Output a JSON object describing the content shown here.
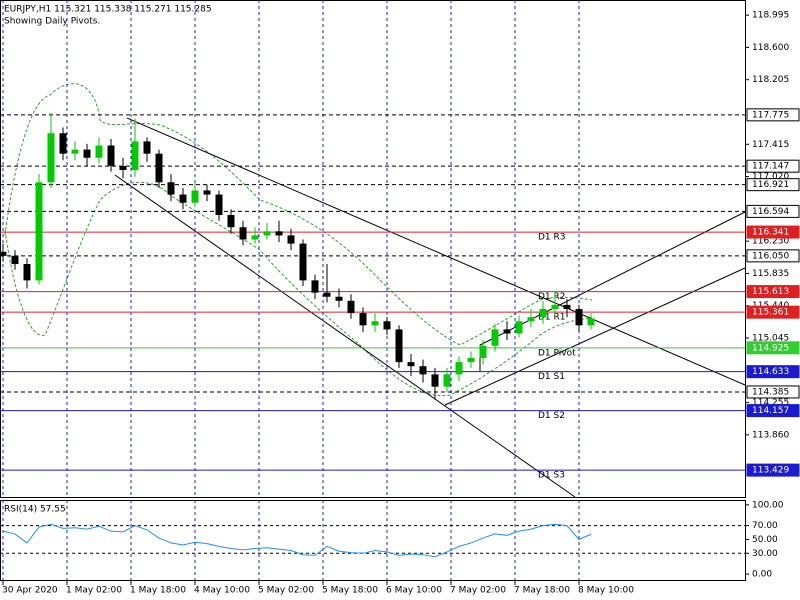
{
  "chart_data": {
    "type": "candlestick",
    "title": "EURJPY,H1  115.321 115.338 115.271 115.285",
    "subtitle": "Showing Daily Pivots.",
    "x": [
      0,
      3,
      6,
      9,
      12,
      15,
      18,
      21,
      24,
      27,
      30,
      33,
      36,
      39,
      42,
      45,
      48,
      51,
      54,
      57,
      60,
      63,
      66,
      69,
      72,
      75,
      78,
      81,
      84,
      87,
      90,
      93,
      96,
      99,
      102,
      105,
      108,
      111,
      114,
      117,
      120,
      123,
      126,
      129,
      132,
      135,
      138,
      141,
      144,
      147
    ],
    "open": [
      116.1,
      116.05,
      115.95,
      115.75,
      116.95,
      117.55,
      117.3,
      117.35,
      117.25,
      117.4,
      117.15,
      117.1,
      117.45,
      117.3,
      116.95,
      116.8,
      116.7,
      116.85,
      116.8,
      116.55,
      116.4,
      116.25,
      116.3,
      116.35,
      116.3,
      116.2,
      115.75,
      115.6,
      115.55,
      115.5,
      115.35,
      115.2,
      115.25,
      115.15,
      114.75,
      114.7,
      114.6,
      114.45,
      114.6,
      114.75,
      114.8,
      114.95,
      115.15,
      115.1,
      115.25,
      115.3,
      115.4,
      115.45,
      115.4,
      115.2
    ],
    "high": [
      116.2,
      116.12,
      116.02,
      117.05,
      117.8,
      117.62,
      117.45,
      117.42,
      117.5,
      117.48,
      117.25,
      117.73,
      117.5,
      117.35,
      117.05,
      116.88,
      116.95,
      116.92,
      116.85,
      116.62,
      116.48,
      116.4,
      116.45,
      116.48,
      116.38,
      116.25,
      115.82,
      115.95,
      115.65,
      115.58,
      115.42,
      115.35,
      115.3,
      115.2,
      114.85,
      114.78,
      114.68,
      114.68,
      114.82,
      114.88,
      115.02,
      115.22,
      115.25,
      115.32,
      115.4,
      115.5,
      115.6,
      115.52,
      115.45,
      115.35
    ],
    "low": [
      115.98,
      115.88,
      115.65,
      115.7,
      116.88,
      117.22,
      117.22,
      117.15,
      117.18,
      117.08,
      117.0,
      117.02,
      117.2,
      116.88,
      116.72,
      116.62,
      116.65,
      116.72,
      116.48,
      116.32,
      116.18,
      116.2,
      116.25,
      116.22,
      116.12,
      115.68,
      115.52,
      115.48,
      115.42,
      115.28,
      115.12,
      115.12,
      115.08,
      114.68,
      114.58,
      114.5,
      114.3,
      114.38,
      114.52,
      114.68,
      114.72,
      114.88,
      115.02,
      115.05,
      115.18,
      115.22,
      115.32,
      115.3,
      115.12,
      115.15
    ],
    "close": [
      116.05,
      115.95,
      115.75,
      116.95,
      117.55,
      117.3,
      117.35,
      117.25,
      117.4,
      117.15,
      117.1,
      117.45,
      117.3,
      116.95,
      116.8,
      116.7,
      116.85,
      116.8,
      116.55,
      116.4,
      116.25,
      116.3,
      116.35,
      116.3,
      116.2,
      115.75,
      115.6,
      115.55,
      115.5,
      115.35,
      115.2,
      115.25,
      115.15,
      114.75,
      114.7,
      114.6,
      114.45,
      114.6,
      114.75,
      114.8,
      114.95,
      115.15,
      115.1,
      115.25,
      115.3,
      115.4,
      115.45,
      115.4,
      115.2,
      115.285
    ],
    "up_color": "#00cc00",
    "down_color": "#000000",
    "xlim": [
      -0.75,
      185.5
    ],
    "ylim": [
      113.1,
      119.18
    ],
    "xticks": [
      {
        "value": 0,
        "label": "30 Apr 2020"
      },
      {
        "value": 16,
        "label": "1 May 02:00"
      },
      {
        "value": 32,
        "label": "1 May 18:00"
      },
      {
        "value": 48,
        "label": "4 May 10:00"
      },
      {
        "value": 64,
        "label": "5 May 02:00"
      },
      {
        "value": 80,
        "label": "5 May 18:00"
      },
      {
        "value": 96,
        "label": "6 May 10:00"
      },
      {
        "value": 112,
        "label": "7 May 02:00"
      },
      {
        "value": 128,
        "label": "7 May 18:00"
      },
      {
        "value": 144,
        "label": "8 May 10:00"
      }
    ],
    "yticks": [
      118.995,
      {
        "value": 118.6,
        "label": "118.600"
      },
      118.205,
      117.415,
      {
        "value": 117.02,
        "label": "117.020"
      },
      {
        "value": 116.23,
        "label": "116.230"
      },
      115.835,
      {
        "value": 115.44,
        "label": "115.440"
      },
      115.045,
      114.255,
      {
        "value": 113.86,
        "label": "113.860"
      }
    ],
    "levels": [
      {
        "value": 117.775,
        "label": "117.775",
        "line": "dashed",
        "color": "#000000"
      },
      {
        "value": 117.147,
        "label": "117.147",
        "line": "dashed",
        "color": "#000000"
      },
      {
        "value": 116.921,
        "label": "116.921",
        "line": "dashed",
        "color": "#000000"
      },
      {
        "value": 116.594,
        "label": "116.594",
        "line": "dashed",
        "color": "#000000"
      },
      {
        "value": 116.341,
        "label": "116.341",
        "line": "solid",
        "color": "#e02020",
        "name": "D1 R3"
      },
      {
        "value": 116.05,
        "label": "116.050",
        "line": "dashed",
        "color": "#000000"
      },
      {
        "value": 115.613,
        "label": "115.613",
        "line": "solid",
        "color": "#e02020",
        "name": "D1 R2"
      },
      {
        "value": 115.361,
        "label": "115.361",
        "line": "solid",
        "color": "#e02020",
        "name": "D1 R1"
      },
      {
        "value": 114.925,
        "label": "114.925",
        "line": "solid",
        "color": "#33cc33",
        "name": "D1 Pivot"
      },
      {
        "value": 114.633,
        "label": "114.633",
        "line": "solid",
        "color": "#1a1ad0",
        "name": "D1 S1"
      },
      {
        "value": 114.385,
        "label": "114.385",
        "line": "dashed",
        "color": "#000000"
      },
      {
        "value": 114.157,
        "label": "114.157",
        "line": "solid",
        "color": "#1a1ad0",
        "name": "D1 S2"
      },
      {
        "value": 113.429,
        "label": "113.429",
        "line": "solid",
        "color": "#1a1ad0",
        "name": "D1 S3"
      }
    ],
    "indicator": {
      "title": "RSI(14) 57.55",
      "color": "#1e90ff",
      "values": [
        62,
        58,
        45,
        68,
        72,
        66,
        67,
        65,
        69,
        62,
        61,
        70,
        64,
        52,
        45,
        42,
        46,
        44,
        40,
        37,
        35,
        37,
        38,
        36,
        34,
        28,
        27,
        40,
        33,
        31,
        30,
        34,
        32,
        27,
        29,
        28,
        25,
        32,
        40,
        45,
        52,
        58,
        56,
        62,
        65,
        70,
        72,
        70,
        50,
        57.55
      ],
      "ylim": [
        -10,
        107
      ],
      "yticks": [
        {
          "value": 100,
          "label": "100.00"
        },
        {
          "value": 70,
          "label": "70.00"
        },
        {
          "value": 50,
          "label": "50.00"
        },
        {
          "value": 30,
          "label": "30.00"
        },
        {
          "value": 0,
          "label": "0.00"
        }
      ],
      "levels": [
        70,
        30
      ]
    }
  }
}
